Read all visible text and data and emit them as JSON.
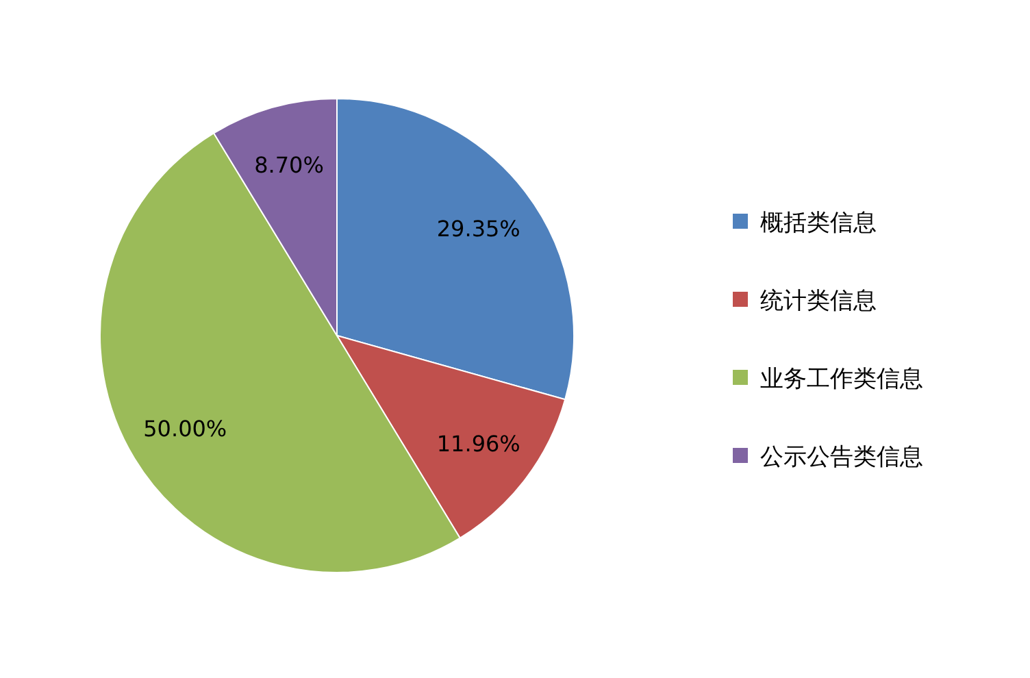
{
  "chart_data": {
    "type": "pie",
    "categories": [
      "概括类信息",
      "统计类信息",
      "业务工作类信息",
      "公示公告类信息"
    ],
    "values": [
      29.35,
      11.96,
      50.0,
      8.7
    ],
    "colors": [
      "#4f81bd",
      "#c0504d",
      "#9bbb59",
      "#8064a2"
    ],
    "value_labels": [
      "29.35%",
      "11.96%",
      "50.00%",
      "8.70%"
    ],
    "legend": "right"
  }
}
